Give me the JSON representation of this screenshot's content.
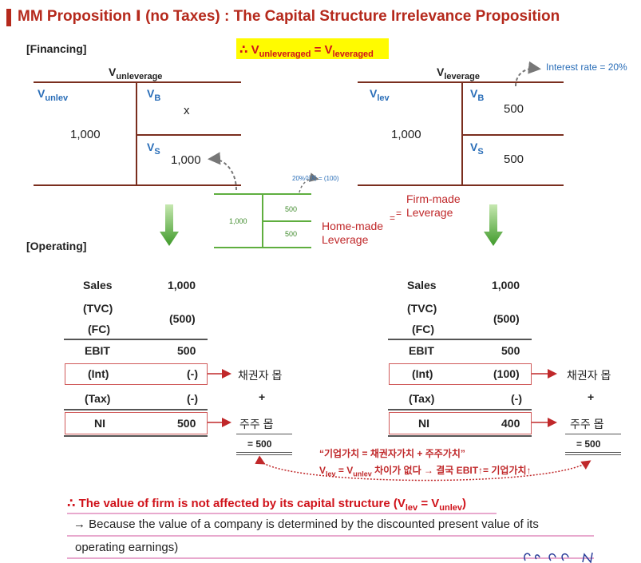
{
  "title": "MM Proposition Ⅰ (no Taxes) : The Capital Structure Irrelevance Proposition",
  "financing_label": "[Financing]",
  "operating_label": "[Operating]",
  "equation": {
    "prefix": "∴ V",
    "sub1": "unleveraged",
    "mid": " = V",
    "sub2": "leveraged"
  },
  "unlev_bs": {
    "head_v": "V",
    "head_sub": "unleverage",
    "left_v": "V",
    "left_sub": "unlev",
    "b_v": "V",
    "b_sub": "B",
    "s_v": "V",
    "s_sub": "S",
    "left_value": "1,000",
    "b_value": "x",
    "s_value": "1,000"
  },
  "lev_bs": {
    "head_v": "V",
    "head_sub": "leverage",
    "left_v": "V",
    "left_sub": "lev",
    "b_v": "V",
    "b_sub": "B",
    "s_v": "V",
    "s_sub": "S",
    "left_value": "1,000",
    "b_value": "500",
    "s_value": "500",
    "interest_note": "Interest rate = 20%"
  },
  "homemade": {
    "left": "1,000",
    "top": "500",
    "bottom": "500",
    "interest": "20%이자 = (100)"
  },
  "leverage_labels": {
    "firm_line1": "Firm-made",
    "firm_line2": "Leverage",
    "home_line1": "Home-made",
    "home_line2": "Leverage",
    "eq1": "=",
    "eq2": "="
  },
  "income_left": {
    "sales_label": "Sales",
    "sales_value": "1,000",
    "tvc_label": "(TVC)",
    "fc_label": "(FC)",
    "cost_value": "(500)",
    "ebit_label": "EBIT",
    "ebit_value": "500",
    "int_label": "(Int)",
    "int_value": "(-)",
    "tax_label": "(Tax)",
    "tax_value": "(-)",
    "ni_label": "NI",
    "ni_value": "500"
  },
  "income_right": {
    "sales_label": "Sales",
    "sales_value": "1,000",
    "tvc_label": "(TVC)",
    "fc_label": "(FC)",
    "cost_value": "(500)",
    "ebit_label": "EBIT",
    "ebit_value": "500",
    "int_label": "(Int)",
    "int_value": "(100)",
    "tax_label": "(Tax)",
    "tax_value": "(-)",
    "ni_label": "NI",
    "ni_value": "400"
  },
  "claims": {
    "creditor": "채권자 몹",
    "plus": "+",
    "shareholder": "주주 몹",
    "total": "= 500"
  },
  "notes": {
    "line1": "“기업가치 = 채권자가치 + 주주가치”",
    "line2_a": "V",
    "line2_sub1": "lev",
    "line2_b": " = V",
    "line2_sub2": "unlev",
    "line2_c": " 차이가 없다 → 결국 EBIT↑= 기업가치↑"
  },
  "conclusion": {
    "text": "∴ The value of firm is not affected by its capital structure (V",
    "sub1": "lev",
    "mid": " = V",
    "sub2": "unlev",
    "end": ")"
  },
  "because_line1": "→ Because the value of a company is determined by the discounted present value of its",
  "because_line2": "operating earnings)",
  "colors": {
    "title": "#b5291c",
    "accent_red": "#c0282a",
    "blue": "#2a6eb8",
    "green": "#5fae3f",
    "highlight": "#fffb00"
  }
}
